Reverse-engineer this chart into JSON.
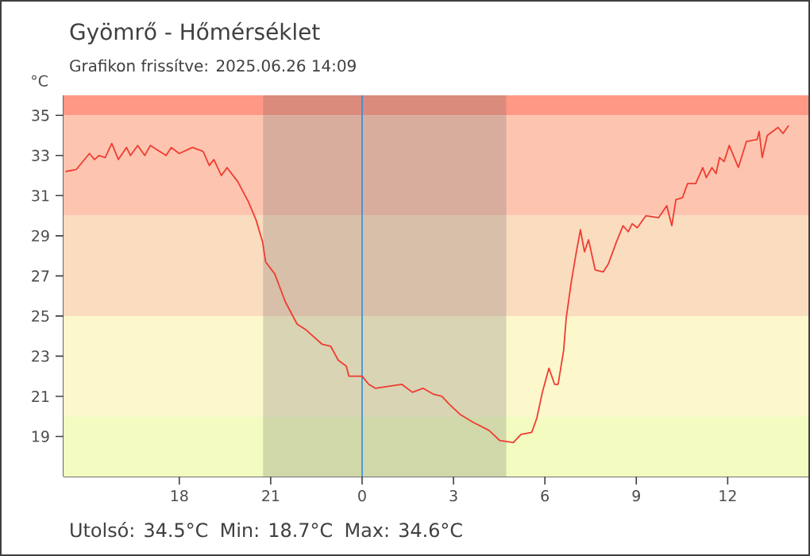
{
  "chart_data": {
    "type": "line",
    "title": "Gyömrő - Hőmérséklet",
    "subtitle": "Grafikon frissítve: 2025.06.26 14:09",
    "ylabel": "°C",
    "annotations": [
      "Utolsó: 34.5°C",
      "Min: 18.7°C",
      "Max: 34.6°C"
    ],
    "x": [
      "2025-06-25T14:16",
      "2025-06-25T14:37",
      "2025-06-25T15:03",
      "2025-06-25T15:13",
      "2025-06-25T15:22",
      "2025-06-25T15:34",
      "2025-06-25T15:47",
      "2025-06-25T16:00",
      "2025-06-25T16:16",
      "2025-06-25T16:24",
      "2025-06-25T16:38",
      "2025-06-25T16:52",
      "2025-06-25T17:03",
      "2025-06-25T17:34",
      "2025-06-25T17:44",
      "2025-06-25T18:00",
      "2025-06-25T18:26",
      "2025-06-25T18:47",
      "2025-06-25T18:59",
      "2025-06-25T19:08",
      "2025-06-25T19:23",
      "2025-06-25T19:34",
      "2025-06-25T19:55",
      "2025-06-25T20:16",
      "2025-06-25T20:31",
      "2025-06-25T20:44",
      "2025-06-25T20:50",
      "2025-06-25T21:08",
      "2025-06-25T21:29",
      "2025-06-25T21:52",
      "2025-06-25T22:10",
      "2025-06-25T22:41",
      "2025-06-25T22:58",
      "2025-06-25T23:13",
      "2025-06-25T23:29",
      "2025-06-25T23:34",
      "2025-06-26T00:00",
      "2025-06-26T00:13",
      "2025-06-26T00:26",
      "2025-06-26T01:18",
      "2025-06-26T01:39",
      "2025-06-26T02:00",
      "2025-06-26T02:21",
      "2025-06-26T02:37",
      "2025-06-26T02:52",
      "2025-06-26T03:13",
      "2025-06-26T03:39",
      "2025-06-26T04:10",
      "2025-06-26T04:31",
      "2025-06-26T04:58",
      "2025-06-26T05:13",
      "2025-06-26T05:34",
      "2025-06-26T05:44",
      "2025-06-26T05:55",
      "2025-06-26T06:08",
      "2025-06-26T06:19",
      "2025-06-26T06:26",
      "2025-06-26T06:37",
      "2025-06-26T06:42",
      "2025-06-26T06:52",
      "2025-06-26T07:02",
      "2025-06-26T07:10",
      "2025-06-26T07:18",
      "2025-06-26T07:26",
      "2025-06-26T07:39",
      "2025-06-26T07:55",
      "2025-06-26T08:05",
      "2025-06-26T08:21",
      "2025-06-26T08:34",
      "2025-06-26T08:44",
      "2025-06-26T08:52",
      "2025-06-26T09:02",
      "2025-06-26T09:19",
      "2025-06-26T09:44",
      "2025-06-26T10:00",
      "2025-06-26T10:10",
      "2025-06-26T10:18",
      "2025-06-26T10:31",
      "2025-06-26T10:41",
      "2025-06-26T10:57",
      "2025-06-26T11:11",
      "2025-06-26T11:18",
      "2025-06-26T11:29",
      "2025-06-26T11:37",
      "2025-06-26T11:44",
      "2025-06-26T11:53",
      "2025-06-26T12:03",
      "2025-06-26T12:21",
      "2025-06-26T12:37",
      "2025-06-26T12:58",
      "2025-06-26T13:02",
      "2025-06-26T13:08",
      "2025-06-26T13:18",
      "2025-06-26T13:39",
      "2025-06-26T13:49",
      "2025-06-26T14:00"
    ],
    "series": [
      {
        "color": "#f03c32",
        "values": [
          32.2,
          32.3,
          33.1,
          32.8,
          33.0,
          32.9,
          33.6,
          32.8,
          33.4,
          33.0,
          33.5,
          33.0,
          33.5,
          33.0,
          33.4,
          33.1,
          33.4,
          33.2,
          32.5,
          32.8,
          32.0,
          32.4,
          31.7,
          30.7,
          29.8,
          28.7,
          27.7,
          27.1,
          25.7,
          24.6,
          24.3,
          23.6,
          23.5,
          22.8,
          22.5,
          22.0,
          22.0,
          21.6,
          21.4,
          21.6,
          21.2,
          21.4,
          21.1,
          21.0,
          20.6,
          20.1,
          19.7,
          19.3,
          18.8,
          18.7,
          19.1,
          19.2,
          19.9,
          21.2,
          22.4,
          21.6,
          21.6,
          23.3,
          24.9,
          26.7,
          28.2,
          29.3,
          28.2,
          28.8,
          27.3,
          27.2,
          27.6,
          28.7,
          29.5,
          29.2,
          29.6,
          29.4,
          30.0,
          29.9,
          30.5,
          29.5,
          30.8,
          30.9,
          31.6,
          31.6,
          32.4,
          31.9,
          32.4,
          32.1,
          32.9,
          32.7,
          33.5,
          32.4,
          33.7,
          33.8,
          34.2,
          32.9,
          34.0,
          34.4,
          34.1,
          34.5
        ]
      }
    ],
    "xlim": [
      "2025-06-25T14:12",
      "2025-06-26T14:39"
    ],
    "xticks": [
      {
        "value": "2025-06-25T18:00",
        "label": "18"
      },
      {
        "value": "2025-06-25T21:00",
        "label": "21"
      },
      {
        "value": "2025-06-26T00:00",
        "label": "0"
      },
      {
        "value": "2025-06-26T03:00",
        "label": "3"
      },
      {
        "value": "2025-06-26T06:00",
        "label": "6"
      },
      {
        "value": "2025-06-26T09:00",
        "label": "9"
      },
      {
        "value": "2025-06-26T12:00",
        "label": "12"
      }
    ],
    "ylim": [
      17,
      36
    ],
    "yticks": [
      19,
      21,
      23,
      25,
      27,
      29,
      31,
      33,
      35
    ],
    "grid": false,
    "marker": "none",
    "line_style": "solid",
    "bands": [
      {
        "axis": "y",
        "from": 35,
        "to": 36,
        "color": "#ff9986"
      },
      {
        "axis": "y",
        "from": 30,
        "to": 35,
        "color": "#fdc5b0"
      },
      {
        "axis": "y",
        "from": 25,
        "to": 30,
        "color": "#fadcbf"
      },
      {
        "axis": "y",
        "from": 20,
        "to": 25,
        "color": "#fdf7cc"
      },
      {
        "axis": "y",
        "from": 17,
        "to": 20,
        "color": "#f3fbc0"
      },
      {
        "axis": "x",
        "from": "2025-06-25T20:45",
        "to": "2025-06-26T04:44",
        "color": "#5a5a5a"
      }
    ],
    "ref_lines": [
      {
        "axis": "x",
        "value": "2025-06-26T00:00",
        "color": "#2a8de0"
      }
    ]
  }
}
